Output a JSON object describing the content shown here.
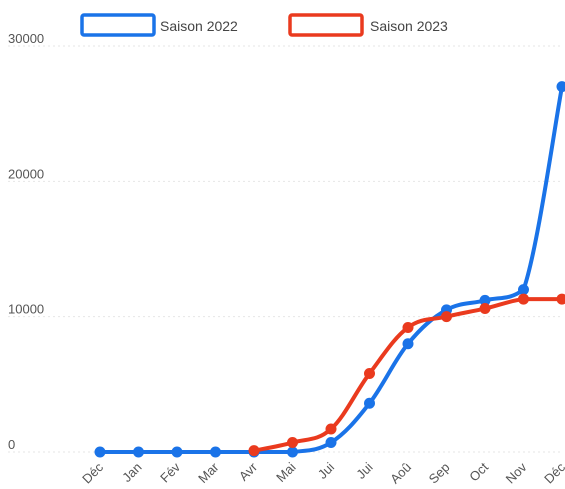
{
  "chart_data": {
    "type": "line",
    "title": "",
    "xlabel": "",
    "ylabel": "",
    "categories": [
      "Déc",
      "Jan",
      "Fév",
      "Mar",
      "Avr",
      "Mai",
      "Jui",
      "Jui",
      "Aoû",
      "Sep",
      "Oct",
      "Nov",
      "Déc"
    ],
    "ylim": [
      0,
      30000
    ],
    "yticks": [
      0,
      10000,
      20000,
      30000
    ],
    "ytick_labels": [
      "0",
      "10000",
      "20000",
      "30000"
    ],
    "grid": true,
    "legend_position": "top",
    "series": [
      {
        "name": "Saison 2022",
        "color": "#1a73e8",
        "values": [
          0,
          0,
          0,
          0,
          0,
          0,
          700,
          3600,
          8000,
          10500,
          11200,
          12000,
          27000
        ]
      },
      {
        "name": "Saison 2023",
        "color": "#ea3a1e",
        "values": [
          null,
          null,
          null,
          null,
          100,
          700,
          1700,
          5800,
          9200,
          10000,
          10600,
          11300,
          11300
        ]
      }
    ]
  }
}
